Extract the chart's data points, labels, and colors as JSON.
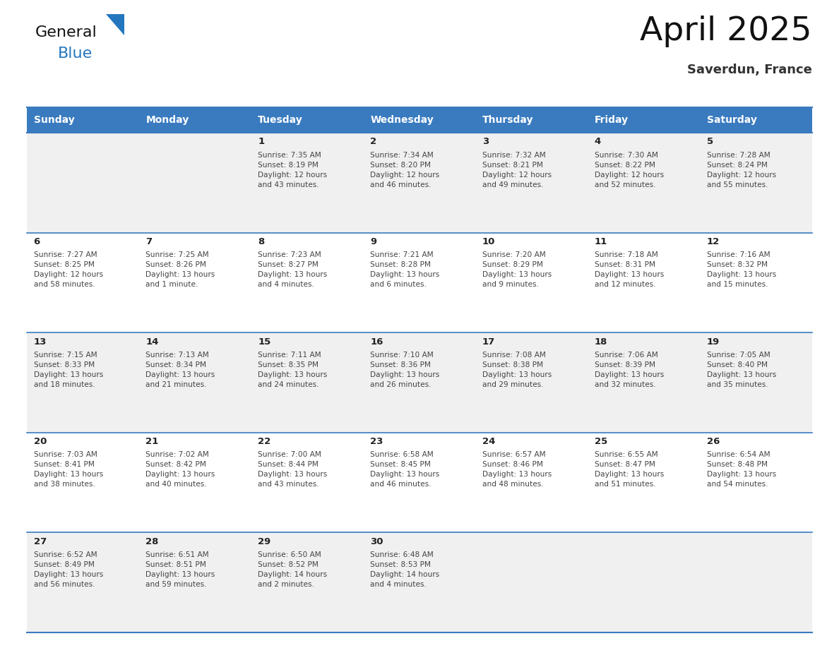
{
  "title": "April 2025",
  "subtitle": "Saverdun, France",
  "days_of_week": [
    "Sunday",
    "Monday",
    "Tuesday",
    "Wednesday",
    "Thursday",
    "Friday",
    "Saturday"
  ],
  "header_bg_color": "#3a7bbf",
  "header_text_color": "#ffffff",
  "bg_color": "#ffffff",
  "row_bg_colors": [
    "#f0f0f0",
    "#ffffff",
    "#f0f0f0",
    "#ffffff",
    "#f0f0f0"
  ],
  "separator_color": "#3a7bbf",
  "text_color": "#444444",
  "day_num_color": "#222222",
  "logo_general_color": "#111111",
  "logo_blue_color": "#2477be",
  "weeks": [
    [
      {
        "day": null,
        "info": null
      },
      {
        "day": null,
        "info": null
      },
      {
        "day": 1,
        "info": "Sunrise: 7:35 AM\nSunset: 8:19 PM\nDaylight: 12 hours\nand 43 minutes."
      },
      {
        "day": 2,
        "info": "Sunrise: 7:34 AM\nSunset: 8:20 PM\nDaylight: 12 hours\nand 46 minutes."
      },
      {
        "day": 3,
        "info": "Sunrise: 7:32 AM\nSunset: 8:21 PM\nDaylight: 12 hours\nand 49 minutes."
      },
      {
        "day": 4,
        "info": "Sunrise: 7:30 AM\nSunset: 8:22 PM\nDaylight: 12 hours\nand 52 minutes."
      },
      {
        "day": 5,
        "info": "Sunrise: 7:28 AM\nSunset: 8:24 PM\nDaylight: 12 hours\nand 55 minutes."
      }
    ],
    [
      {
        "day": 6,
        "info": "Sunrise: 7:27 AM\nSunset: 8:25 PM\nDaylight: 12 hours\nand 58 minutes."
      },
      {
        "day": 7,
        "info": "Sunrise: 7:25 AM\nSunset: 8:26 PM\nDaylight: 13 hours\nand 1 minute."
      },
      {
        "day": 8,
        "info": "Sunrise: 7:23 AM\nSunset: 8:27 PM\nDaylight: 13 hours\nand 4 minutes."
      },
      {
        "day": 9,
        "info": "Sunrise: 7:21 AM\nSunset: 8:28 PM\nDaylight: 13 hours\nand 6 minutes."
      },
      {
        "day": 10,
        "info": "Sunrise: 7:20 AM\nSunset: 8:29 PM\nDaylight: 13 hours\nand 9 minutes."
      },
      {
        "day": 11,
        "info": "Sunrise: 7:18 AM\nSunset: 8:31 PM\nDaylight: 13 hours\nand 12 minutes."
      },
      {
        "day": 12,
        "info": "Sunrise: 7:16 AM\nSunset: 8:32 PM\nDaylight: 13 hours\nand 15 minutes."
      }
    ],
    [
      {
        "day": 13,
        "info": "Sunrise: 7:15 AM\nSunset: 8:33 PM\nDaylight: 13 hours\nand 18 minutes."
      },
      {
        "day": 14,
        "info": "Sunrise: 7:13 AM\nSunset: 8:34 PM\nDaylight: 13 hours\nand 21 minutes."
      },
      {
        "day": 15,
        "info": "Sunrise: 7:11 AM\nSunset: 8:35 PM\nDaylight: 13 hours\nand 24 minutes."
      },
      {
        "day": 16,
        "info": "Sunrise: 7:10 AM\nSunset: 8:36 PM\nDaylight: 13 hours\nand 26 minutes."
      },
      {
        "day": 17,
        "info": "Sunrise: 7:08 AM\nSunset: 8:38 PM\nDaylight: 13 hours\nand 29 minutes."
      },
      {
        "day": 18,
        "info": "Sunrise: 7:06 AM\nSunset: 8:39 PM\nDaylight: 13 hours\nand 32 minutes."
      },
      {
        "day": 19,
        "info": "Sunrise: 7:05 AM\nSunset: 8:40 PM\nDaylight: 13 hours\nand 35 minutes."
      }
    ],
    [
      {
        "day": 20,
        "info": "Sunrise: 7:03 AM\nSunset: 8:41 PM\nDaylight: 13 hours\nand 38 minutes."
      },
      {
        "day": 21,
        "info": "Sunrise: 7:02 AM\nSunset: 8:42 PM\nDaylight: 13 hours\nand 40 minutes."
      },
      {
        "day": 22,
        "info": "Sunrise: 7:00 AM\nSunset: 8:44 PM\nDaylight: 13 hours\nand 43 minutes."
      },
      {
        "day": 23,
        "info": "Sunrise: 6:58 AM\nSunset: 8:45 PM\nDaylight: 13 hours\nand 46 minutes."
      },
      {
        "day": 24,
        "info": "Sunrise: 6:57 AM\nSunset: 8:46 PM\nDaylight: 13 hours\nand 48 minutes."
      },
      {
        "day": 25,
        "info": "Sunrise: 6:55 AM\nSunset: 8:47 PM\nDaylight: 13 hours\nand 51 minutes."
      },
      {
        "day": 26,
        "info": "Sunrise: 6:54 AM\nSunset: 8:48 PM\nDaylight: 13 hours\nand 54 minutes."
      }
    ],
    [
      {
        "day": 27,
        "info": "Sunrise: 6:52 AM\nSunset: 8:49 PM\nDaylight: 13 hours\nand 56 minutes."
      },
      {
        "day": 28,
        "info": "Sunrise: 6:51 AM\nSunset: 8:51 PM\nDaylight: 13 hours\nand 59 minutes."
      },
      {
        "day": 29,
        "info": "Sunrise: 6:50 AM\nSunset: 8:52 PM\nDaylight: 14 hours\nand 2 minutes."
      },
      {
        "day": 30,
        "info": "Sunrise: 6:48 AM\nSunset: 8:53 PM\nDaylight: 14 hours\nand 4 minutes."
      },
      {
        "day": null,
        "info": null
      },
      {
        "day": null,
        "info": null
      },
      {
        "day": null,
        "info": null
      }
    ]
  ]
}
